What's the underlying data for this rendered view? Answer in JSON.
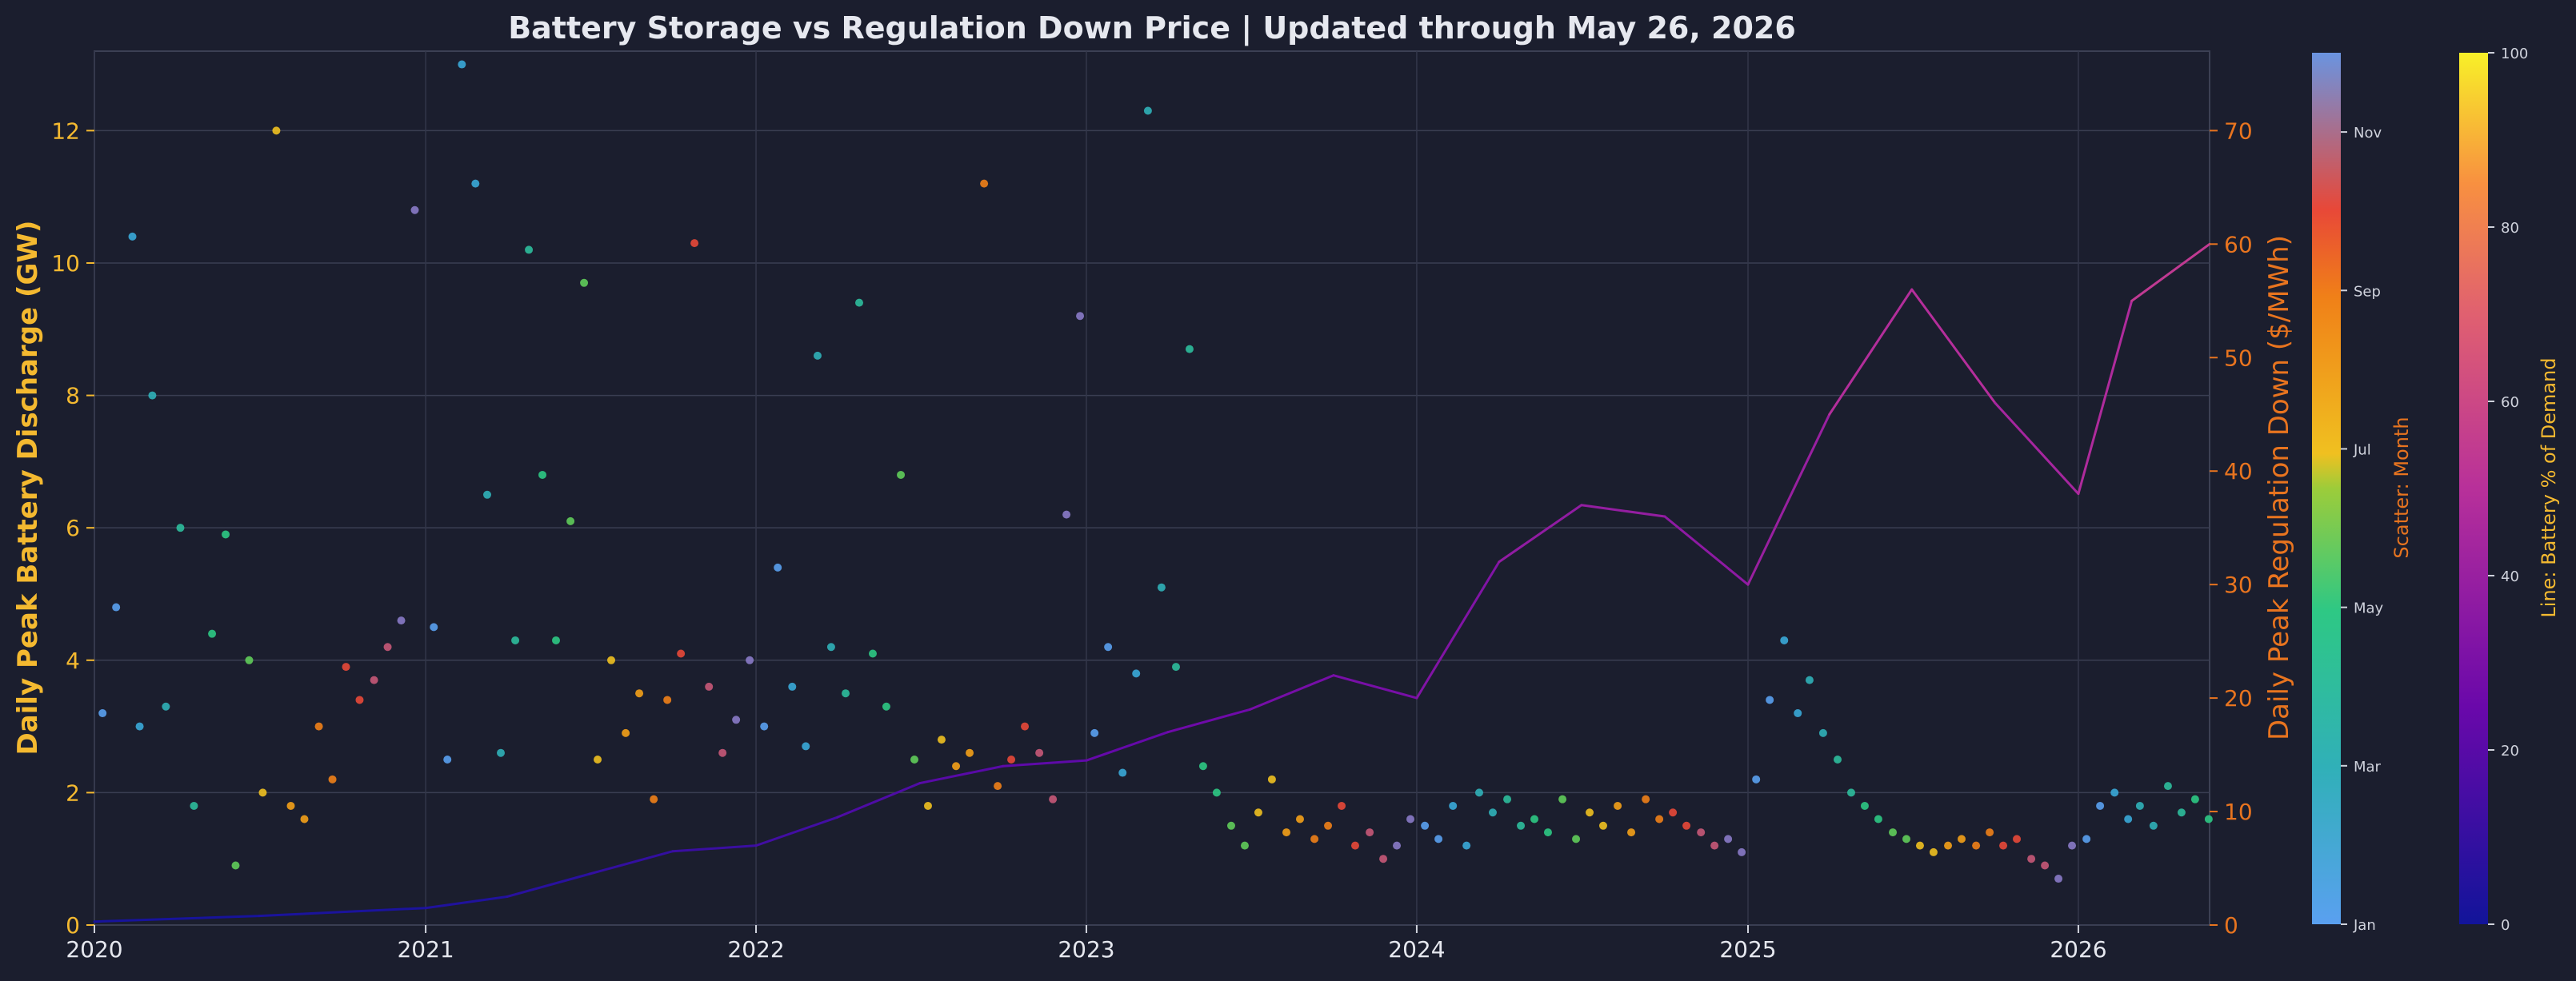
{
  "chart_data": {
    "type": "scatter+line",
    "title": "Battery Storage vs Regulation Down Price  |  Updated through May 26, 2026",
    "xlabel": "",
    "x_tick_labels": [
      "2020",
      "2021",
      "2022",
      "2023",
      "2024",
      "2025",
      "2026"
    ],
    "x_range": [
      "2020-01-01",
      "2026-05-26"
    ],
    "left_axis": {
      "label": "Daily Peak Battery Discharge (GW)",
      "range": [
        0,
        13.2
      ],
      "ticks": [
        0,
        2,
        4,
        6,
        8,
        10,
        12
      ],
      "color": "#f4b930"
    },
    "right_axis": {
      "label": "Daily Peak Regulation Down ($/MWh)",
      "range": [
        0,
        77
      ],
      "ticks": [
        0,
        10,
        20,
        30,
        40,
        50,
        60,
        70
      ],
      "color": "#e8741f"
    },
    "grid": true,
    "scatter_series": {
      "axis": "left",
      "color_by": "month",
      "colorbar_label": "Scatter: Month",
      "colorbar_ticks": [
        "Jan",
        "Mar",
        "May",
        "Jul",
        "Sep",
        "Nov"
      ],
      "points": [
        [
          "2020-01-10",
          3.2
        ],
        [
          "2020-01-25",
          4.8
        ],
        [
          "2020-02-12",
          10.4
        ],
        [
          "2020-02-20",
          3.0
        ],
        [
          "2020-03-05",
          8.0
        ],
        [
          "2020-03-20",
          3.3
        ],
        [
          "2020-04-05",
          6.0
        ],
        [
          "2020-04-20",
          1.8
        ],
        [
          "2020-05-10",
          4.4
        ],
        [
          "2020-05-25",
          5.9
        ],
        [
          "2020-06-05",
          0.9
        ],
        [
          "2020-06-20",
          4.0
        ],
        [
          "2020-07-05",
          2.0
        ],
        [
          "2020-07-20",
          12.0
        ],
        [
          "2020-08-05",
          1.8
        ],
        [
          "2020-08-20",
          1.6
        ],
        [
          "2020-09-05",
          3.0
        ],
        [
          "2020-09-20",
          2.2
        ],
        [
          "2020-10-05",
          3.9
        ],
        [
          "2020-10-20",
          3.4
        ],
        [
          "2020-11-05",
          3.7
        ],
        [
          "2020-11-20",
          4.2
        ],
        [
          "2020-12-05",
          4.6
        ],
        [
          "2020-12-20",
          10.8
        ],
        [
          "2021-01-10",
          4.5
        ],
        [
          "2021-01-25",
          2.5
        ],
        [
          "2021-02-10",
          13.0
        ],
        [
          "2021-02-25",
          11.2
        ],
        [
          "2021-03-10",
          6.5
        ],
        [
          "2021-03-25",
          2.6
        ],
        [
          "2021-04-10",
          4.3
        ],
        [
          "2021-04-25",
          10.2
        ],
        [
          "2021-05-10",
          6.8
        ],
        [
          "2021-05-25",
          4.3
        ],
        [
          "2021-06-10",
          6.1
        ],
        [
          "2021-06-25",
          9.7
        ],
        [
          "2021-07-10",
          2.5
        ],
        [
          "2021-07-25",
          4.0
        ],
        [
          "2021-08-10",
          2.9
        ],
        [
          "2021-08-25",
          3.5
        ],
        [
          "2021-09-10",
          1.9
        ],
        [
          "2021-09-25",
          3.4
        ],
        [
          "2021-10-10",
          4.1
        ],
        [
          "2021-10-25",
          10.3
        ],
        [
          "2021-11-10",
          3.6
        ],
        [
          "2021-11-25",
          2.6
        ],
        [
          "2021-12-10",
          3.1
        ],
        [
          "2021-12-25",
          4.0
        ],
        [
          "2022-01-10",
          3.0
        ],
        [
          "2022-01-25",
          5.4
        ],
        [
          "2022-02-10",
          3.6
        ],
        [
          "2022-02-25",
          2.7
        ],
        [
          "2022-03-10",
          8.6
        ],
        [
          "2022-03-25",
          4.2
        ],
        [
          "2022-04-10",
          3.5
        ],
        [
          "2022-04-25",
          9.4
        ],
        [
          "2022-05-10",
          4.1
        ],
        [
          "2022-05-25",
          3.3
        ],
        [
          "2022-06-10",
          6.8
        ],
        [
          "2022-06-25",
          2.5
        ],
        [
          "2022-07-10",
          1.8
        ],
        [
          "2022-07-25",
          2.8
        ],
        [
          "2022-08-10",
          2.4
        ],
        [
          "2022-08-25",
          2.6
        ],
        [
          "2022-09-10",
          11.2
        ],
        [
          "2022-09-25",
          2.1
        ],
        [
          "2022-10-10",
          2.5
        ],
        [
          "2022-10-25",
          3.0
        ],
        [
          "2022-11-10",
          2.6
        ],
        [
          "2022-11-25",
          1.9
        ],
        [
          "2022-12-10",
          6.2
        ],
        [
          "2022-12-25",
          9.2
        ],
        [
          "2023-01-10",
          2.9
        ],
        [
          "2023-01-25",
          4.2
        ],
        [
          "2023-02-10",
          2.3
        ],
        [
          "2023-02-25",
          3.8
        ],
        [
          "2023-03-10",
          12.3
        ],
        [
          "2023-03-25",
          5.1
        ],
        [
          "2023-04-10",
          3.9
        ],
        [
          "2023-04-25",
          8.7
        ],
        [
          "2023-05-10",
          2.4
        ],
        [
          "2023-05-25",
          2.0
        ],
        [
          "2023-06-10",
          1.5
        ],
        [
          "2023-06-25",
          1.2
        ],
        [
          "2023-07-10",
          1.7
        ],
        [
          "2023-07-25",
          2.2
        ],
        [
          "2023-08-10",
          1.4
        ],
        [
          "2023-08-25",
          1.6
        ],
        [
          "2023-09-10",
          1.3
        ],
        [
          "2023-09-25",
          1.5
        ],
        [
          "2023-10-10",
          1.8
        ],
        [
          "2023-10-25",
          1.2
        ],
        [
          "2023-11-10",
          1.4
        ],
        [
          "2023-11-25",
          1.0
        ],
        [
          "2023-12-10",
          1.2
        ],
        [
          "2023-12-25",
          1.6
        ],
        [
          "2024-01-10",
          1.5
        ],
        [
          "2024-01-25",
          1.3
        ],
        [
          "2024-02-10",
          1.8
        ],
        [
          "2024-02-25",
          1.2
        ],
        [
          "2024-03-10",
          2.0
        ],
        [
          "2024-03-25",
          1.7
        ],
        [
          "2024-04-10",
          1.9
        ],
        [
          "2024-04-25",
          1.5
        ],
        [
          "2024-05-10",
          1.6
        ],
        [
          "2024-05-25",
          1.4
        ],
        [
          "2024-06-10",
          1.9
        ],
        [
          "2024-06-25",
          1.3
        ],
        [
          "2024-07-10",
          1.7
        ],
        [
          "2024-07-25",
          1.5
        ],
        [
          "2024-08-10",
          1.8
        ],
        [
          "2024-08-25",
          1.4
        ],
        [
          "2024-09-10",
          1.9
        ],
        [
          "2024-09-25",
          1.6
        ],
        [
          "2024-10-10",
          1.7
        ],
        [
          "2024-10-25",
          1.5
        ],
        [
          "2024-11-10",
          1.4
        ],
        [
          "2024-11-25",
          1.2
        ],
        [
          "2024-12-10",
          1.3
        ],
        [
          "2024-12-25",
          1.1
        ],
        [
          "2025-01-10",
          2.2
        ],
        [
          "2025-01-25",
          3.4
        ],
        [
          "2025-02-10",
          4.3
        ],
        [
          "2025-02-25",
          3.2
        ],
        [
          "2025-03-10",
          3.7
        ],
        [
          "2025-03-25",
          2.9
        ],
        [
          "2025-04-10",
          2.5
        ],
        [
          "2025-04-25",
          2.0
        ],
        [
          "2025-05-10",
          1.8
        ],
        [
          "2025-05-25",
          1.6
        ],
        [
          "2025-06-10",
          1.4
        ],
        [
          "2025-06-25",
          1.3
        ],
        [
          "2025-07-10",
          1.2
        ],
        [
          "2025-07-25",
          1.1
        ],
        [
          "2025-08-10",
          1.2
        ],
        [
          "2025-08-25",
          1.3
        ],
        [
          "2025-09-10",
          1.2
        ],
        [
          "2025-09-25",
          1.4
        ],
        [
          "2025-10-10",
          1.2
        ],
        [
          "2025-10-25",
          1.3
        ],
        [
          "2025-11-10",
          1.0
        ],
        [
          "2025-11-25",
          0.9
        ],
        [
          "2025-12-10",
          0.7
        ],
        [
          "2025-12-25",
          1.2
        ],
        [
          "2026-01-10",
          1.3
        ],
        [
          "2026-01-25",
          1.8
        ],
        [
          "2026-02-10",
          2.0
        ],
        [
          "2026-02-25",
          1.6
        ],
        [
          "2026-03-10",
          1.8
        ],
        [
          "2026-03-25",
          1.5
        ],
        [
          "2026-04-10",
          2.1
        ],
        [
          "2026-04-25",
          1.7
        ],
        [
          "2026-05-10",
          1.9
        ],
        [
          "2026-05-25",
          1.6
        ]
      ]
    },
    "line_series": {
      "axis": "right",
      "color_by": "battery_pct_of_demand",
      "colorbar_label": "Line: Battery % of Demand",
      "colorbar_ticks": [
        "0",
        "20",
        "40",
        "60",
        "80",
        "100"
      ],
      "points": [
        [
          "2020-01-01",
          0.3,
          1
        ],
        [
          "2020-07-01",
          0.8,
          2
        ],
        [
          "2021-01-01",
          1.5,
          3
        ],
        [
          "2021-04-01",
          2.5,
          5
        ],
        [
          "2021-07-01",
          4.5,
          8
        ],
        [
          "2021-10-01",
          6.5,
          11
        ],
        [
          "2022-01-01",
          7.0,
          12
        ],
        [
          "2022-04-01",
          9.5,
          15
        ],
        [
          "2022-07-01",
          12.5,
          19
        ],
        [
          "2022-10-01",
          14.0,
          21
        ],
        [
          "2023-01-01",
          14.5,
          22
        ],
        [
          "2023-04-01",
          17.0,
          25
        ],
        [
          "2023-07-01",
          19.0,
          28
        ],
        [
          "2023-10-01",
          22.0,
          30
        ],
        [
          "2024-01-01",
          20.0,
          29
        ],
        [
          "2024-04-01",
          32.0,
          36
        ],
        [
          "2024-07-01",
          37.0,
          39
        ],
        [
          "2024-10-01",
          36.0,
          38
        ],
        [
          "2025-01-01",
          30.0,
          35
        ],
        [
          "2025-04-01",
          45.0,
          45
        ],
        [
          "2025-07-01",
          56.0,
          52
        ],
        [
          "2025-10-01",
          46.0,
          46
        ],
        [
          "2026-01-01",
          38.0,
          42
        ],
        [
          "2026-03-01",
          55.0,
          52
        ],
        [
          "2026-05-26",
          60.0,
          56
        ]
      ]
    }
  }
}
